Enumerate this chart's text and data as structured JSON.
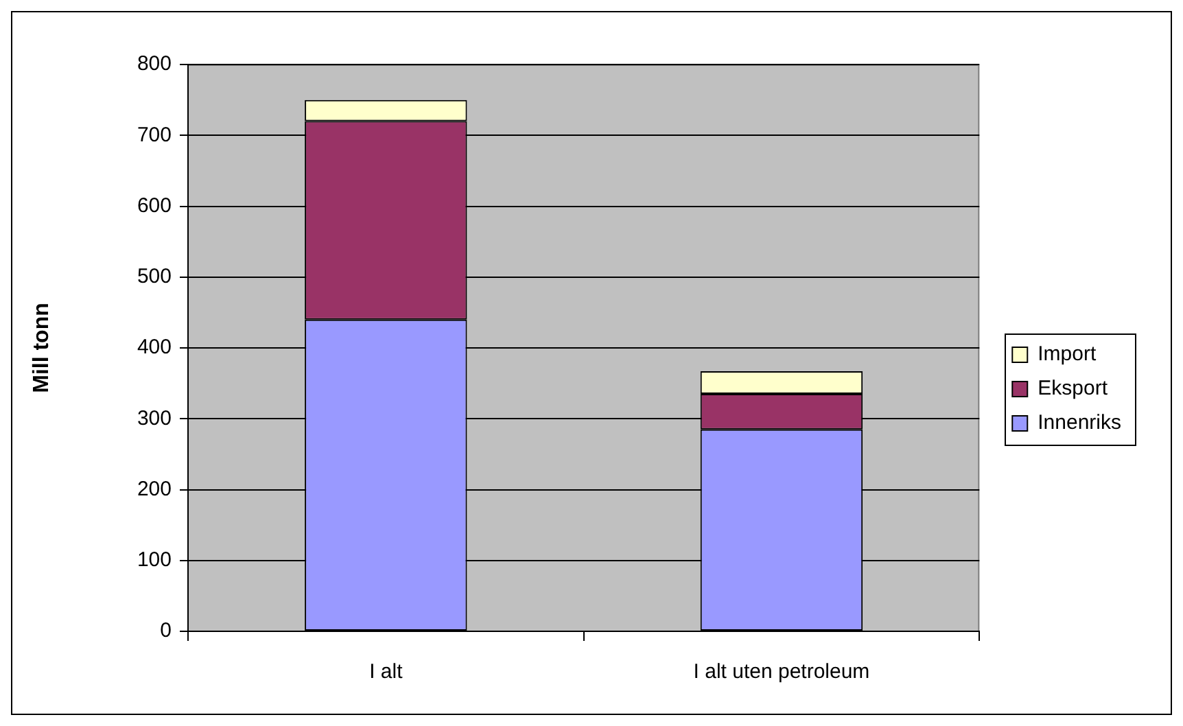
{
  "chart_data": {
    "type": "bar",
    "stacked": true,
    "categories": [
      "I alt",
      "I alt uten petroleum"
    ],
    "series": [
      {
        "name": "Innenriks",
        "color": "#9999ff",
        "values": [
          440,
          285
        ]
      },
      {
        "name": "Eksport",
        "color": "#993366",
        "values": [
          280,
          50
        ]
      },
      {
        "name": "Import",
        "color": "#ffffcc",
        "values": [
          30,
          32
        ]
      }
    ],
    "ylabel": "Mill tonn",
    "ylim": [
      0,
      800
    ],
    "yticks": [
      0,
      100,
      200,
      300,
      400,
      500,
      600,
      700,
      800
    ],
    "grid": "y",
    "legend": "right"
  }
}
